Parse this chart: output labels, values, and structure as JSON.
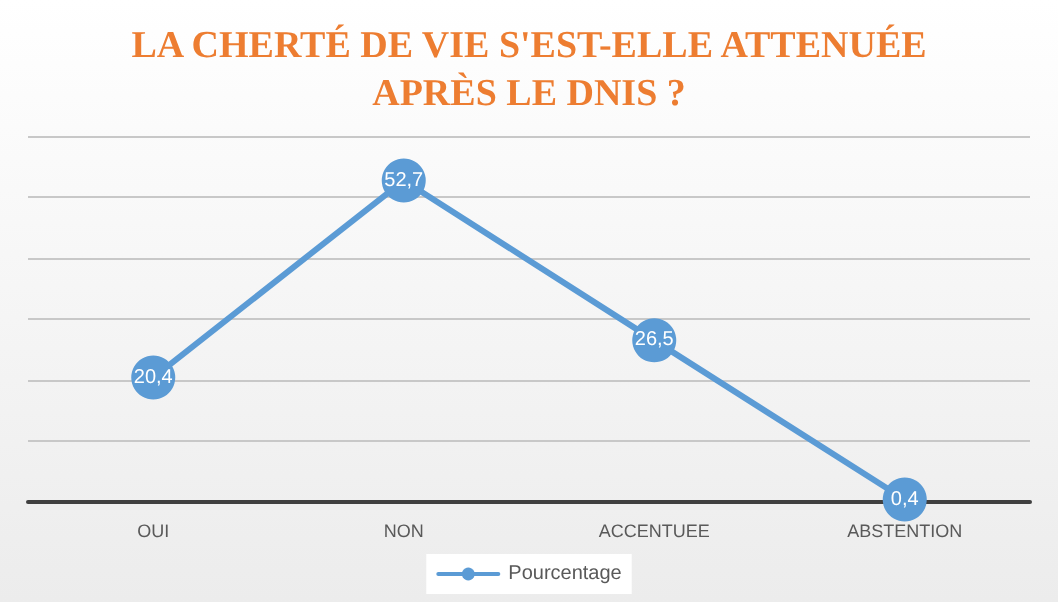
{
  "chart_data": {
    "type": "line",
    "title": "LA CHERTÉ DE VIE S'EST-ELLE ATTENUÉE\nAPRÈS LE DNIS ?",
    "categories": [
      "OUI",
      "NON",
      "ACCENTUEE",
      "ABSTENTION"
    ],
    "series": [
      {
        "name": "Pourcentage",
        "color": "#5b9bd5",
        "values": [
          20.4,
          52.7,
          26.5,
          0.4
        ],
        "value_labels": [
          "20,4",
          "52,7",
          "26,5",
          "0,4"
        ]
      }
    ],
    "ylim": [
      0,
      60
    ],
    "yticks": [
      {
        "value": 0,
        "label": null
      },
      {
        "value": 10,
        "label": null
      },
      {
        "value": 20,
        "label": null
      },
      {
        "value": 30,
        "label": null
      },
      {
        "value": 40,
        "label": null
      },
      {
        "value": 50,
        "label": null
      },
      {
        "value": 60,
        "label": null
      }
    ],
    "tick_labels": "x",
    "grid": "y",
    "legend": "bottom",
    "marker": "circle",
    "line_style": "solid"
  }
}
